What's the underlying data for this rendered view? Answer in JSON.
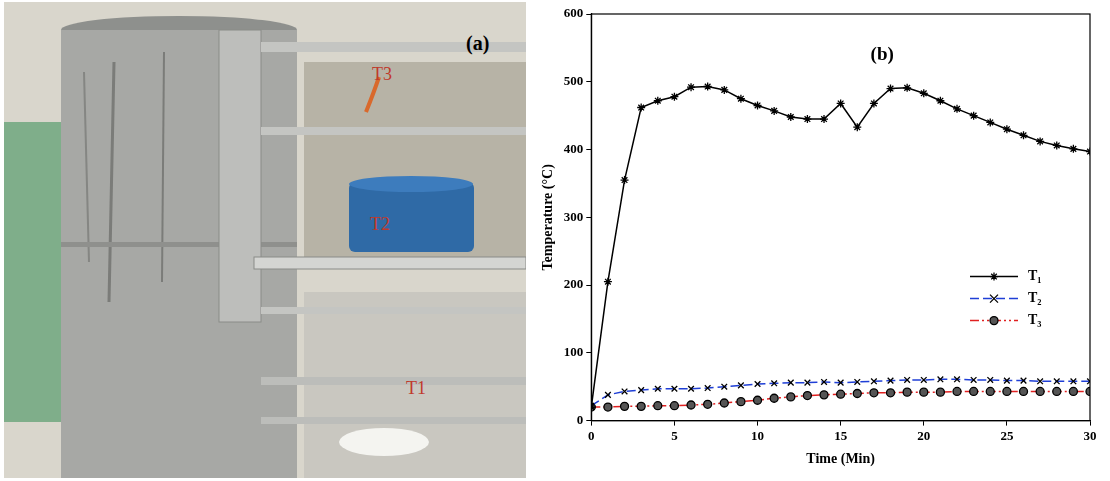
{
  "panel_a": {
    "label": "(a)",
    "annotations": [
      "T3",
      "T2",
      "T1"
    ]
  },
  "chart_data": {
    "type": "line",
    "panel_label": "(b)",
    "x_label": "Time (Min)",
    "y_label": "Temperature (°C)",
    "x": [
      0,
      1,
      2,
      3,
      4,
      5,
      6,
      7,
      8,
      9,
      10,
      11,
      12,
      13,
      14,
      15,
      16,
      17,
      18,
      19,
      20,
      21,
      22,
      23,
      24,
      25,
      26,
      27,
      28,
      29,
      30
    ],
    "xlim": [
      0,
      30
    ],
    "xticks": [
      0,
      5,
      10,
      15,
      20,
      25,
      30
    ],
    "ylim": [
      0,
      600
    ],
    "yticks": [
      0,
      100,
      200,
      300,
      400,
      500,
      600
    ],
    "grid": false,
    "legend": "lower right",
    "series": [
      {
        "name": "T₁",
        "color": "#000000",
        "marker": "star",
        "line_style": "solid",
        "values": [
          20,
          205,
          355,
          462,
          472,
          478,
          492,
          493,
          488,
          475,
          465,
          457,
          448,
          445,
          445,
          468,
          433,
          468,
          490,
          491,
          483,
          472,
          460,
          450,
          440,
          430,
          421,
          412,
          406,
          401,
          397
        ]
      },
      {
        "name": "T₂",
        "color": "#1f3fd6",
        "marker": "x",
        "line_style": "dashed",
        "values": [
          22,
          38,
          43,
          45,
          47,
          47,
          47,
          48,
          50,
          52,
          54,
          55,
          56,
          56,
          57,
          56,
          57,
          58,
          59,
          60,
          60,
          61,
          61,
          60,
          60,
          59,
          59,
          58,
          58,
          58,
          58
        ]
      },
      {
        "name": "T₃",
        "color": "#e02020",
        "marker": "circle",
        "line_style": "dashdotdot",
        "values": [
          20,
          20,
          21,
          21,
          22,
          22,
          23,
          24,
          26,
          28,
          30,
          33,
          35,
          37,
          38,
          39,
          40,
          41,
          41,
          42,
          42,
          42,
          43,
          43,
          43,
          43,
          43,
          43,
          43,
          43,
          43
        ]
      }
    ]
  }
}
